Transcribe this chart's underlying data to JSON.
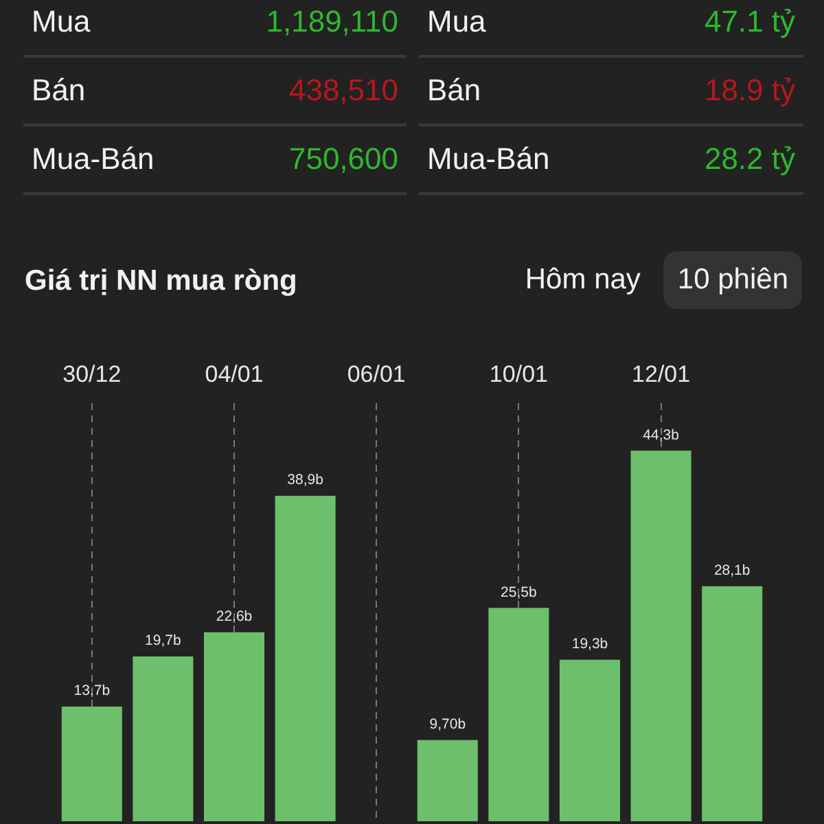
{
  "chart_data": [
    {
      "type": "other",
      "annotations": [
        "Mua",
        "1,189,110",
        "Mua",
        "47.1 tỷ",
        "Bán",
        "438,510",
        "Bán",
        "18.9 tỷ",
        "Mua-Bán",
        "750,600",
        "Mua-Bán",
        "28.2 tỷ"
      ],
      "colors": [
        "#f2f2f2",
        "#2eb82e",
        "#f2f2f2",
        "#2eb82e",
        "#f2f2f2",
        "#b8161c",
        "#f2f2f2",
        "#b8161c",
        "#f2f2f2",
        "#2eb82e",
        "#f2f2f2",
        "#2eb82e"
      ]
    },
    {
      "type": "bar",
      "title": "Giá trị NN mua ròng",
      "annotations": [
        "Hôm nay",
        "10 phiên"
      ],
      "categories": [
        "30/12",
        null,
        "04/01",
        null,
        "06/01",
        null,
        "10/01",
        null,
        "12/01",
        null
      ],
      "values": [
        13.7,
        19.7,
        22.6,
        38.9,
        null,
        9.7,
        25.5,
        19.3,
        44.3,
        28.1
      ],
      "value_labels": [
        "13,7b",
        "19,7b",
        "22,6b",
        "38,9b",
        null,
        "9,70b",
        "25,5b",
        "19,3b",
        "44,3b",
        "28,1b"
      ],
      "color": "#6dbf6b",
      "grid": "x"
    }
  ]
}
